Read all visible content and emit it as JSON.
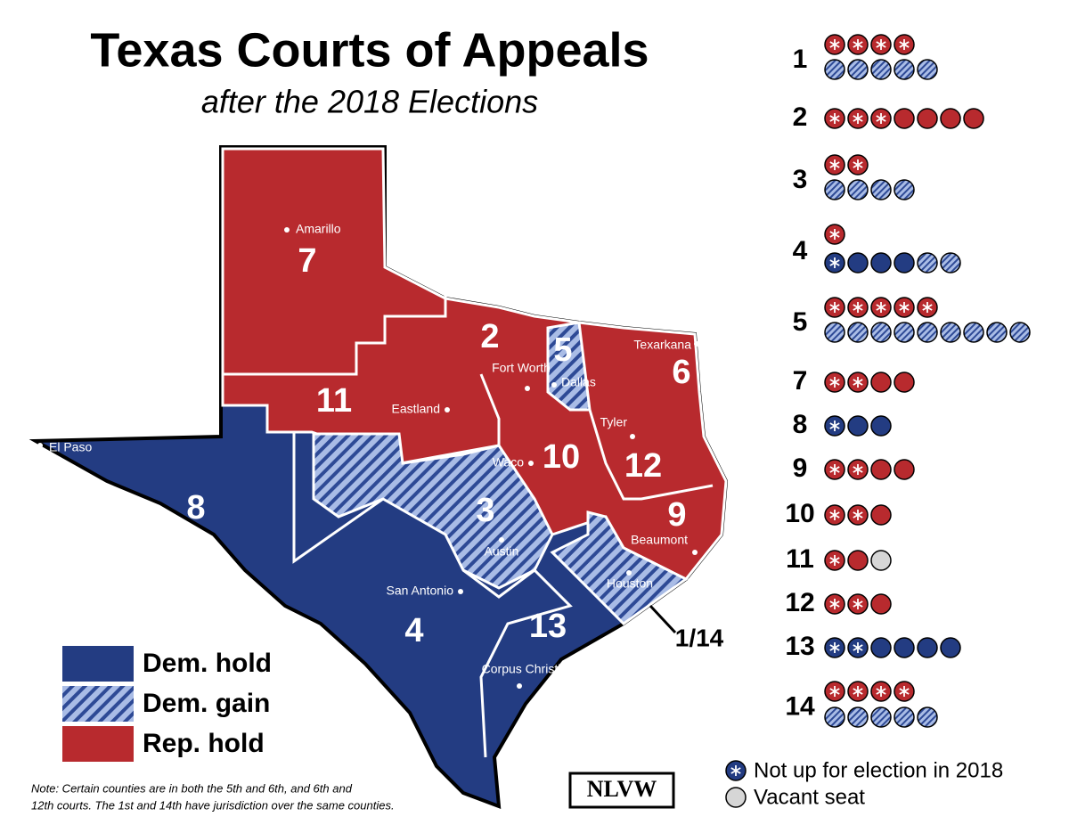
{
  "title": "Texas Courts of Appeals",
  "subtitle": "after the 2018 Elections",
  "districts": [
    "7",
    "2",
    "5",
    "6",
    "11",
    "10",
    "12",
    "9",
    "3",
    "8",
    "4",
    "13",
    "1/14"
  ],
  "cities": [
    "Amarillo",
    "Fort Worth",
    "Dallas",
    "Texarkana",
    "Eastland",
    "Tyler",
    "Waco",
    "Beaumont",
    "Austin",
    "Houston",
    "San Antonio",
    "Corpus Christi",
    "El Paso"
  ],
  "legend": [
    {
      "label": "Dem. hold",
      "kind": "D"
    },
    {
      "label": "Dem. gain",
      "kind": "G"
    },
    {
      "label": "Rep. hold",
      "kind": "R"
    }
  ],
  "colors": {
    "D": "#233c82",
    "G": "#a9bce6",
    "R": "#b82a2e",
    "V": "#d6d6d6"
  },
  "courts": [
    {
      "label": "1",
      "rows": [
        [
          "R*",
          "R*",
          "R*",
          "R*"
        ],
        [
          "G",
          "G",
          "G",
          "G",
          "G"
        ]
      ]
    },
    {
      "label": "2",
      "rows": [
        [
          "R*",
          "R*",
          "R*",
          "R",
          "R",
          "R",
          "R"
        ]
      ]
    },
    {
      "label": "3",
      "rows": [
        [
          "R*",
          "R*"
        ],
        [
          "G",
          "G",
          "G",
          "G"
        ]
      ]
    },
    {
      "label": "4",
      "rows": [
        [
          "R*"
        ],
        [
          "D*",
          "D",
          "D",
          "D",
          "G",
          "G"
        ]
      ]
    },
    {
      "label": "5",
      "rows": [
        [
          "R*",
          "R*",
          "R*",
          "R*",
          "R*"
        ],
        [
          "G",
          "G",
          "G",
          "G",
          "G",
          "G",
          "G",
          "G",
          "G"
        ]
      ]
    },
    {
      "label": "7",
      "rows": [
        [
          "R*",
          "R*",
          "R",
          "R"
        ]
      ]
    },
    {
      "label": "8",
      "rows": [
        [
          "D*",
          "D",
          "D"
        ]
      ]
    },
    {
      "label": "9",
      "rows": [
        [
          "R*",
          "R*",
          "R",
          "R"
        ]
      ]
    },
    {
      "label": "10",
      "rows": [
        [
          "R*",
          "R*",
          "R"
        ]
      ]
    },
    {
      "label": "11",
      "rows": [
        [
          "R*",
          "R",
          "V"
        ]
      ]
    },
    {
      "label": "12",
      "rows": [
        [
          "R*",
          "R*",
          "R"
        ]
      ]
    },
    {
      "label": "13",
      "rows": [
        [
          "D*",
          "D*",
          "D",
          "D",
          "D",
          "D"
        ]
      ]
    },
    {
      "label": "14",
      "rows": [
        [
          "R*",
          "R*",
          "R*",
          "R*"
        ],
        [
          "G",
          "G",
          "G",
          "G",
          "G"
        ]
      ]
    }
  ],
  "seat_legend": {
    "not_up": "Not up for election in 2018",
    "vacant": "Vacant seat"
  },
  "note": [
    "Note: Certain counties are in both the 5th and 6th, and 6th and",
    "12th courts. The 1st and 14th have jurisdiction over the same counties."
  ],
  "logo": "NLVW"
}
